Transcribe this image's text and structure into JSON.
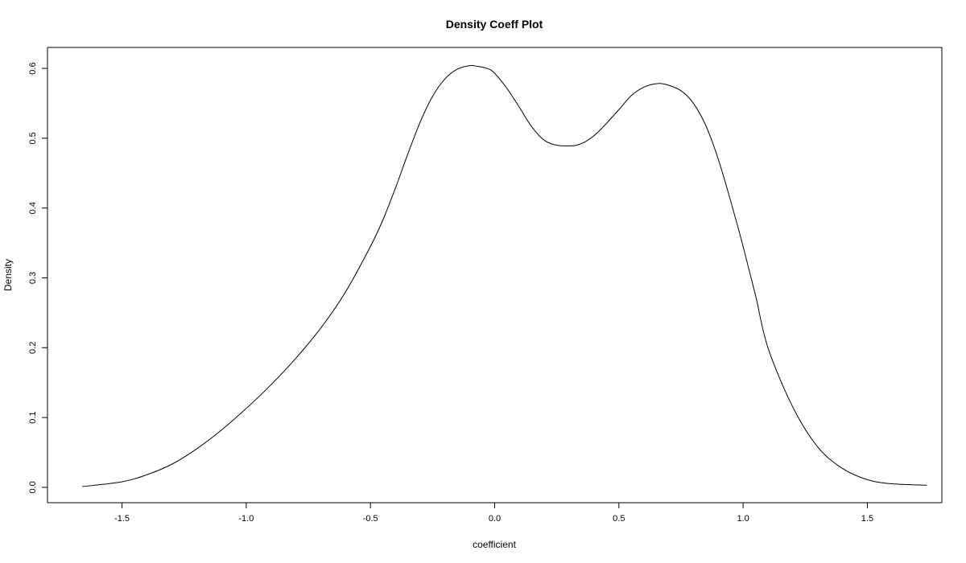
{
  "chart_data": {
    "type": "line",
    "title": "Density Coeff Plot",
    "xlabel": "coefficient",
    "ylabel": "Density",
    "xlim": [
      -1.8,
      1.8
    ],
    "ylim": [
      -0.022,
      0.63
    ],
    "xticks": [
      -1.5,
      -1.0,
      -0.5,
      0.0,
      0.5,
      1.0,
      1.5
    ],
    "xtick_labels": [
      "-1.5",
      "-1.0",
      "-0.5",
      "0.0",
      "0.5",
      "1.0",
      "1.5"
    ],
    "yticks": [
      0.0,
      0.1,
      0.2,
      0.3,
      0.4,
      0.5,
      0.6
    ],
    "ytick_labels": [
      "0.0",
      "0.1",
      "0.2",
      "0.3",
      "0.4",
      "0.5",
      "0.6"
    ],
    "grid": false,
    "legend": "none",
    "line_color": "#000000",
    "series": [
      {
        "x": [
          -1.66,
          -1.5,
          -1.4,
          -1.3,
          -1.2,
          -1.1,
          -1.0,
          -0.9,
          -0.8,
          -0.7,
          -0.6,
          -0.5,
          -0.45,
          -0.4,
          -0.35,
          -0.3,
          -0.25,
          -0.2,
          -0.15,
          -0.1,
          -0.07,
          -0.03,
          0.0,
          0.05,
          0.1,
          0.15,
          0.2,
          0.25,
          0.3,
          0.33,
          0.37,
          0.42,
          0.5,
          0.55,
          0.6,
          0.65,
          0.69,
          0.75,
          0.8,
          0.85,
          0.9,
          0.95,
          1.0,
          1.05,
          1.1,
          1.2,
          1.3,
          1.4,
          1.5,
          1.6,
          1.74
        ],
        "y": [
          0.001,
          0.008,
          0.018,
          0.033,
          0.055,
          0.082,
          0.113,
          0.147,
          0.185,
          0.228,
          0.28,
          0.345,
          0.383,
          0.428,
          0.477,
          0.523,
          0.56,
          0.585,
          0.599,
          0.604,
          0.603,
          0.6,
          0.593,
          0.571,
          0.544,
          0.516,
          0.497,
          0.49,
          0.489,
          0.49,
          0.496,
          0.51,
          0.541,
          0.561,
          0.573,
          0.578,
          0.577,
          0.568,
          0.55,
          0.518,
          0.47,
          0.41,
          0.345,
          0.275,
          0.2,
          0.115,
          0.058,
          0.027,
          0.011,
          0.005,
          0.003
        ]
      }
    ]
  }
}
